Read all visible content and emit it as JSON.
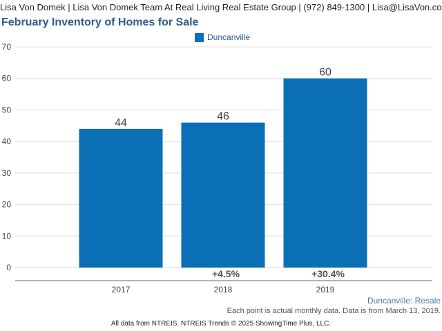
{
  "header": {
    "contact_line": "Lisa Von Domek | Lisa Von Domek Team At Real Living Real Estate Group | (972) 849-1300 | Lisa@LisaVon.com"
  },
  "colors": {
    "bar": "#0b6fb5",
    "title": "#2e5c8a",
    "grid": "#dddddd"
  },
  "chart_data": {
    "type": "bar",
    "title": "February Inventory of Homes for Sale",
    "categories": [
      "2017",
      "2018",
      "2019"
    ],
    "series": [
      {
        "name": "Duncanville",
        "values": [
          44,
          46,
          60
        ]
      }
    ],
    "data_labels": [
      "44",
      "46",
      "60"
    ],
    "change_labels": [
      "",
      "+4.5%",
      "+30.4%"
    ],
    "y_ticks": [
      0,
      10,
      20,
      30,
      40,
      50,
      60,
      70
    ],
    "ylim": [
      0,
      70
    ],
    "xlabel": "",
    "ylabel": "",
    "grid": true,
    "legend": "top-center"
  },
  "footer": {
    "series_caption": "Duncanville: Resale",
    "note": "Each point is actual monthly data. Data is from March 13, 2019.",
    "source": "All data from NTREIS. NTREIS Trends © 2025 ShowingTime Plus, LLC."
  }
}
